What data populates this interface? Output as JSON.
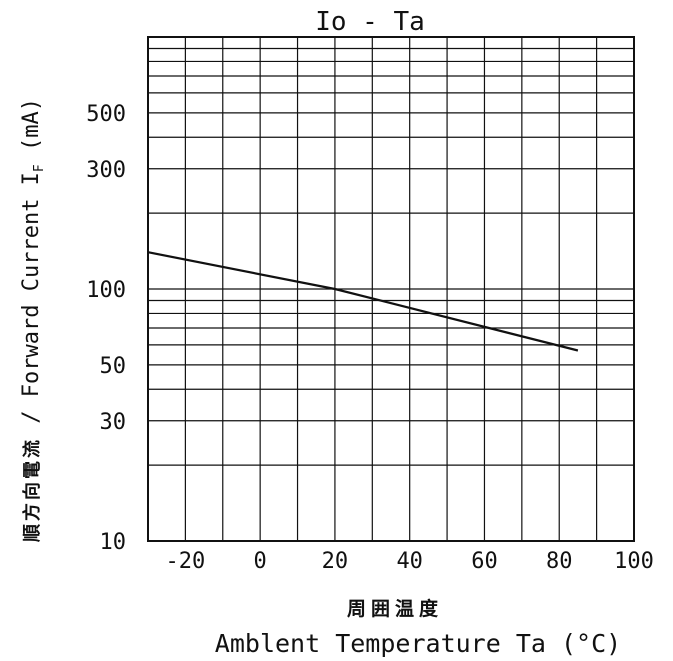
{
  "chart_data": {
    "type": "line",
    "title": "Io - Ta",
    "xlabel_jp": "周囲温度",
    "xlabel": "Amblent Temperature Ta (°C)",
    "ylabel_jp": "順方向電流",
    "ylabel_sep": " / ",
    "ylabel_main": "Forward Current I",
    "ylabel_sub": "F",
    "ylabel_unit": " (mA)",
    "x_scale": "linear",
    "y_scale": "log",
    "xlim": [
      -30,
      100
    ],
    "ylim": [
      10,
      1000
    ],
    "x_ticks": [
      -20,
      0,
      20,
      40,
      60,
      80,
      100
    ],
    "x_tick_labels": [
      "-20",
      "0",
      "20",
      "40",
      "60",
      "80",
      "100"
    ],
    "y_ticks": [
      10,
      30,
      50,
      100,
      300,
      500
    ],
    "y_tick_labels": [
      "10",
      "30",
      "50",
      "100",
      "300",
      "500"
    ],
    "grid": true,
    "series": [
      {
        "x": [
          -30,
          20,
          85
        ],
        "y": [
          140,
          100,
          57
        ]
      }
    ]
  }
}
